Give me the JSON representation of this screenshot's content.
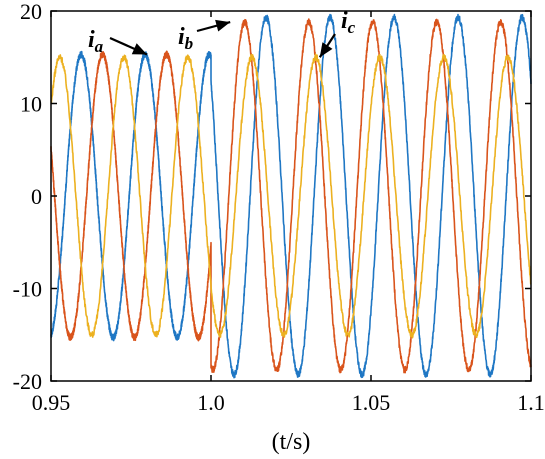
{
  "chart_data": {
    "type": "line",
    "title": "",
    "xlabel": "(t/s)",
    "ylabel": "",
    "xlim": [
      0.95,
      1.1
    ],
    "ylim": [
      -20,
      20
    ],
    "x_ticks": [
      0.95,
      1.0,
      1.05,
      1.1
    ],
    "x_tick_labels": [
      "0.95",
      "1.0",
      "1.05",
      "1.1"
    ],
    "y_ticks": [
      -20,
      -10,
      0,
      10,
      20
    ],
    "y_tick_labels": [
      "-20",
      "-10",
      "0",
      "10",
      "20"
    ],
    "grid": false,
    "frequency_hz": 50,
    "series": [
      {
        "name": "ia",
        "color": "#1f77c4",
        "segments": [
          {
            "x_start": 0.95,
            "x_end": 1.0,
            "amplitude": 15.3,
            "phase_deg": 100
          },
          {
            "x_start": 1.0,
            "x_end": 1.1,
            "amplitude": 19.3,
            "phase_deg": 140
          }
        ]
      },
      {
        "name": "ib",
        "color": "#d9541c",
        "segments": [
          {
            "x_start": 0.95,
            "x_end": 1.0,
            "amplitude": 15.3,
            "phase_deg": -20
          },
          {
            "x_start": 1.0,
            "x_end": 1.1,
            "amplitude": 18.8,
            "phase_deg": -100
          }
        ]
      },
      {
        "name": "ic",
        "color": "#ecb120",
        "segments": [
          {
            "x_start": 0.95,
            "x_end": 1.1,
            "amplitude": 15.0,
            "phase_deg": -140
          }
        ]
      }
    ],
    "annotations": [
      {
        "label": "i",
        "subscript": "a",
        "series": "ia",
        "points_to": [
          0.98,
          15.3
        ]
      },
      {
        "label": "i",
        "subscript": "b",
        "series": "ib",
        "points_to": [
          1.006,
          18.8
        ]
      },
      {
        "label": "i",
        "subscript": "c",
        "series": "ic",
        "points_to": [
          1.034,
          15.0
        ]
      }
    ]
  }
}
